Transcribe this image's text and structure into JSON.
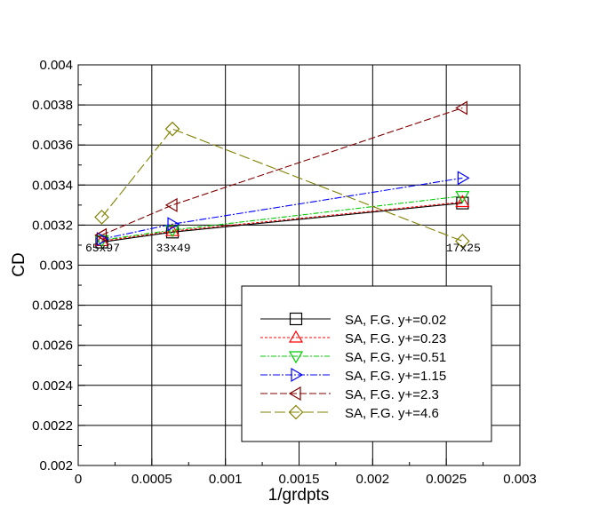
{
  "chart_data": {
    "type": "line",
    "xlabel": "1/grdpts",
    "ylabel": "CD",
    "xlim": [
      0,
      0.003
    ],
    "ylim": [
      0.002,
      0.004
    ],
    "xticks": [
      0,
      0.0005,
      0.001,
      0.0015,
      0.002,
      0.0025,
      0.003
    ],
    "xtick_labels": [
      "0",
      "0.0005",
      "0.001",
      "0.0015",
      "0.002",
      "0.0025",
      "0.003"
    ],
    "yticks": [
      0.002,
      0.0022,
      0.0024,
      0.0026,
      0.0028,
      0.003,
      0.0032,
      0.0034,
      0.0036,
      0.0038,
      0.004
    ],
    "ytick_labels": [
      "0.002",
      "0.0022",
      "0.0024",
      "0.0026",
      "0.0028",
      "0.003",
      "0.0032",
      "0.0034",
      "0.0036",
      "0.0038",
      "0.004"
    ],
    "grid": true,
    "legend_position": "bottom-right",
    "x": [
      0.00016,
      0.00064,
      0.00261
    ],
    "series": [
      {
        "name": "SA, F.G. y+=0.02",
        "values": [
          0.003115,
          0.003165,
          0.00331
        ],
        "color": "#000000",
        "marker": "square",
        "dash": "none"
      },
      {
        "name": "SA, F.G. y+=0.23",
        "values": [
          0.00312,
          0.00317,
          0.003315
        ],
        "color": "#ff0000",
        "marker": "triangle-up",
        "dash": "3,2"
      },
      {
        "name": "SA, F.G. y+=0.51",
        "values": [
          0.003125,
          0.003175,
          0.003345
        ],
        "color": "#00cc00",
        "marker": "triangle-down",
        "dash": "6,2,2,2"
      },
      {
        "name": "SA, F.G. y+=1.15",
        "values": [
          0.00313,
          0.003205,
          0.003435
        ],
        "color": "#0000ff",
        "marker": "triangle-right",
        "dash": "8,2,2,2"
      },
      {
        "name": "SA, F.G. y+=2.3",
        "values": [
          0.00315,
          0.0033,
          0.003785
        ],
        "color": "#800000",
        "marker": "triangle-left",
        "dash": "8,3"
      },
      {
        "name": "SA, F.G. y+=4.6",
        "values": [
          0.00324,
          0.00368,
          0.00312
        ],
        "color": "#808000",
        "marker": "diamond",
        "dash": "12,4"
      }
    ],
    "annotations": [
      {
        "text": "65x97",
        "x": 0.00016
      },
      {
        "text": "33x49",
        "x": 0.00064
      },
      {
        "text": "17x25",
        "x": 0.00261
      }
    ]
  }
}
